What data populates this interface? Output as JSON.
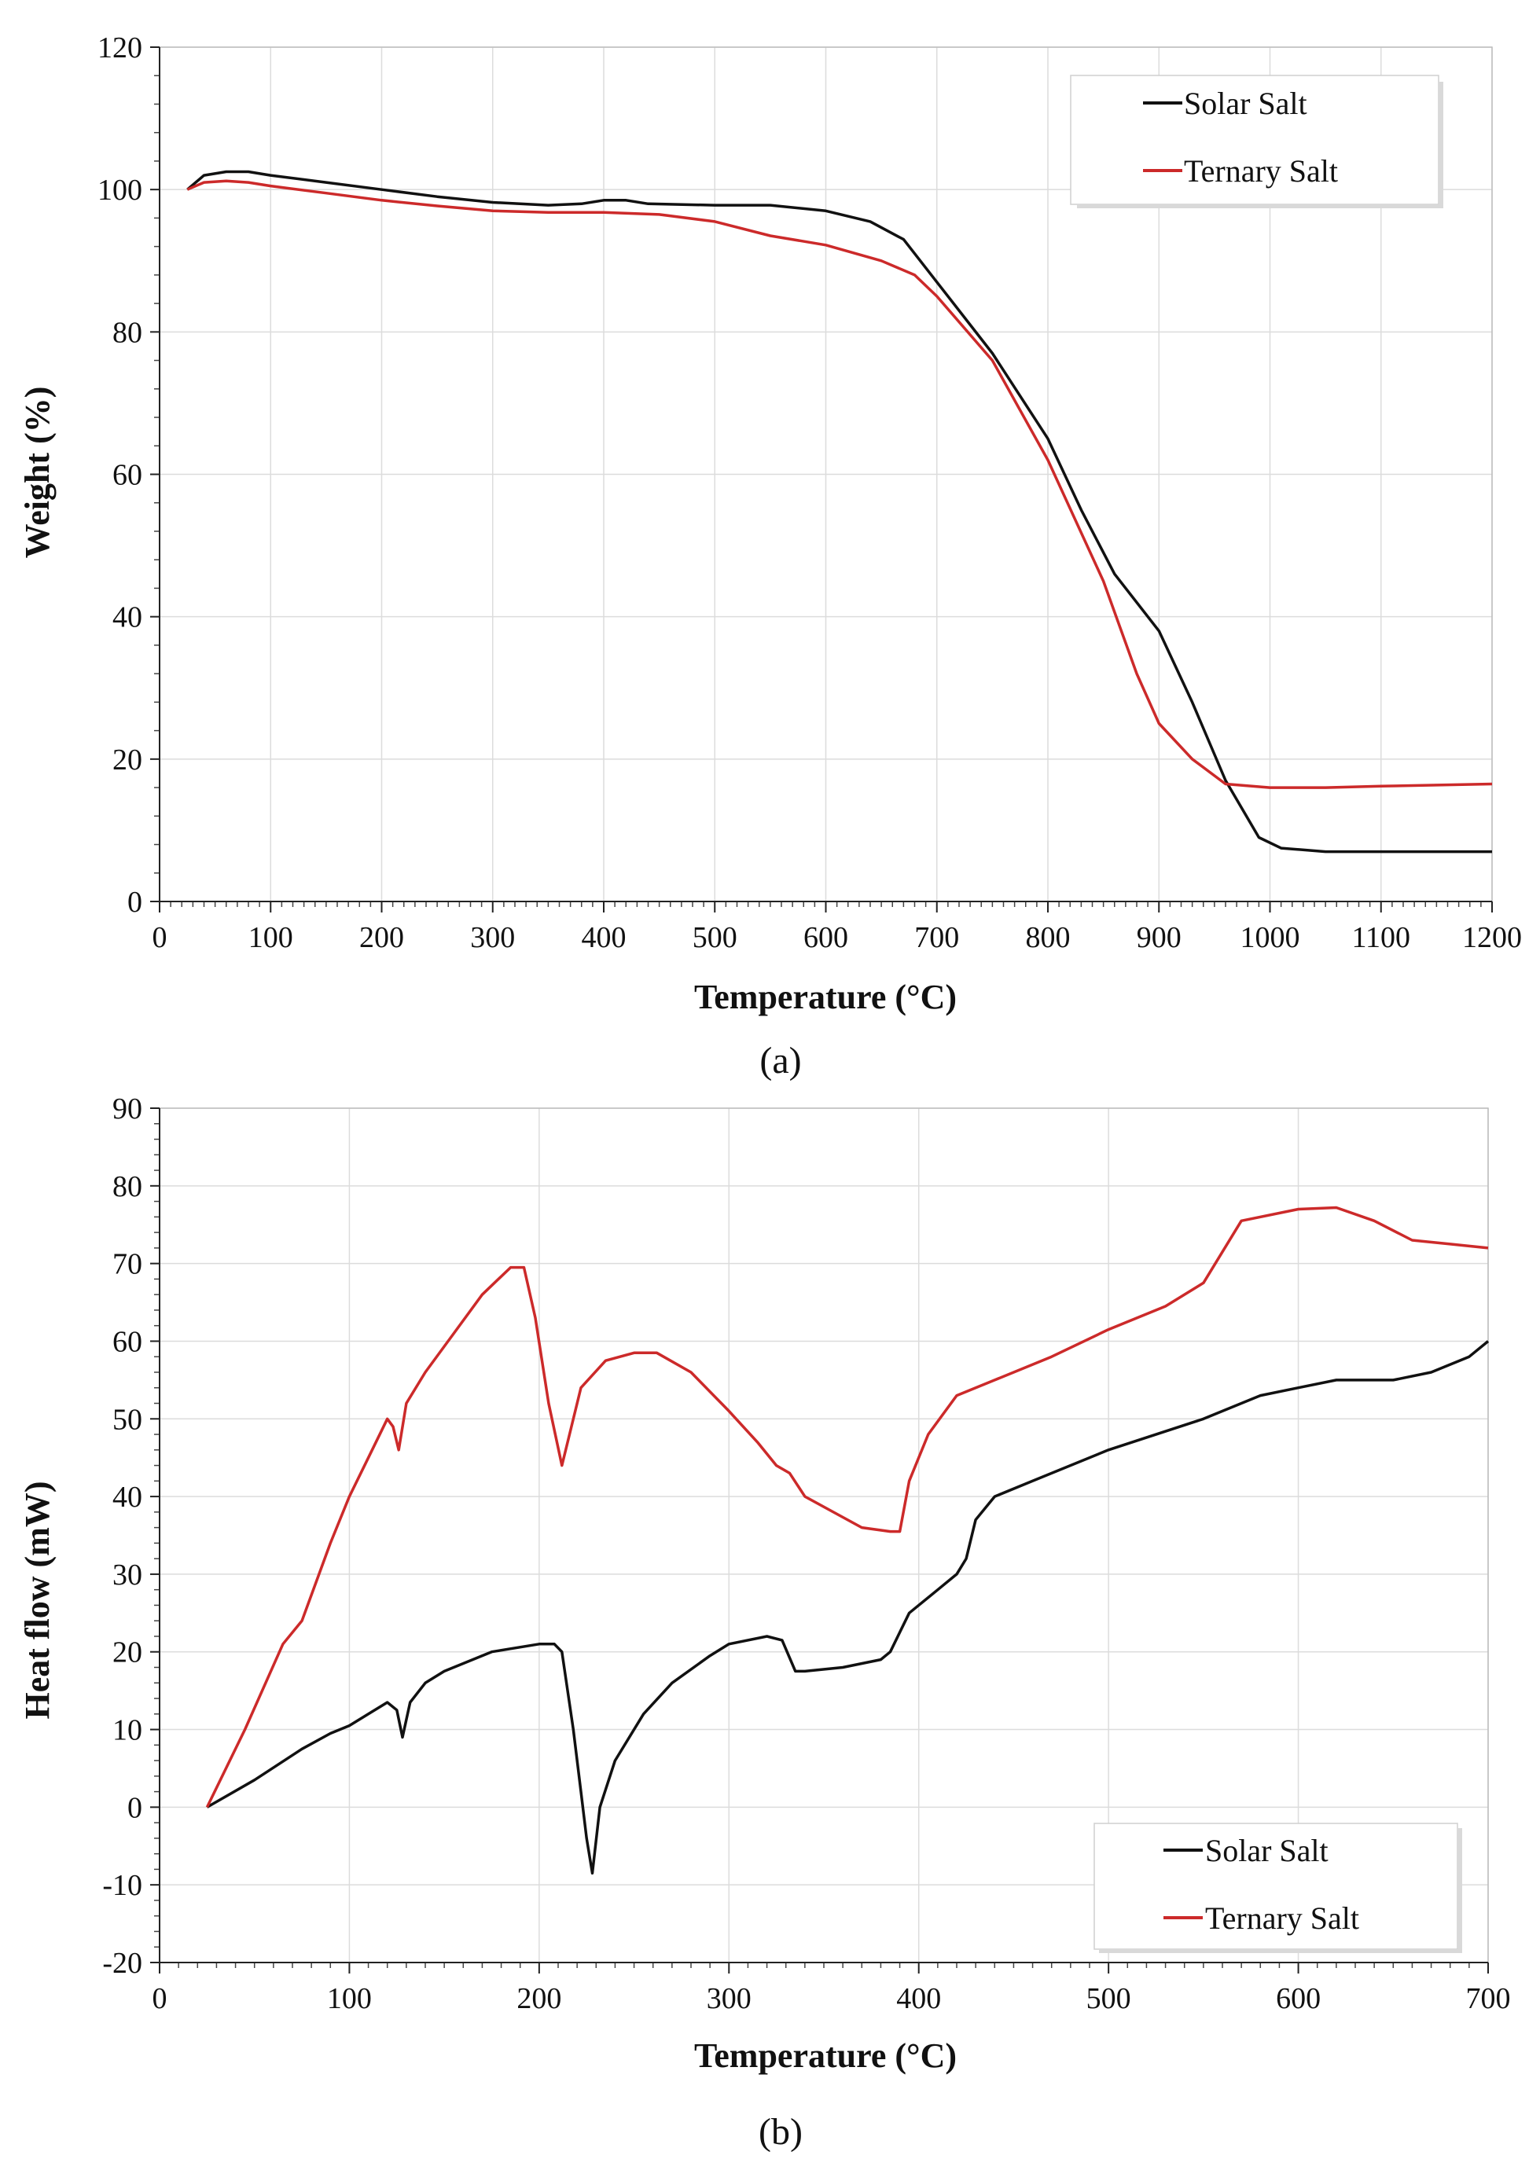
{
  "chart_data": [
    {
      "type": "line",
      "panel_id": "a",
      "caption": "(a)",
      "title": "",
      "xlabel": "Temperature (°C)",
      "ylabel": "Weight   (%)",
      "xlim": [
        0,
        1200
      ],
      "ylim": [
        0,
        120
      ],
      "xticks": [
        0,
        100,
        200,
        300,
        400,
        500,
        600,
        700,
        800,
        900,
        1000,
        1100,
        1200
      ],
      "yticks": [
        0,
        20,
        40,
        60,
        80,
        100,
        120
      ],
      "grid": true,
      "legend_position": "top-right",
      "series": [
        {
          "name": "Solar Salt",
          "color": "#111111",
          "x": [
            25,
            40,
            60,
            80,
            100,
            150,
            200,
            250,
            300,
            350,
            380,
            400,
            420,
            440,
            500,
            550,
            600,
            640,
            670,
            700,
            750,
            800,
            830,
            860,
            900,
            930,
            960,
            990,
            1010,
            1050,
            1100,
            1200
          ],
          "y": [
            100,
            102,
            102.5,
            102.5,
            102,
            101,
            100,
            99,
            98.2,
            97.8,
            98,
            98.5,
            98.5,
            98,
            97.8,
            97.8,
            97,
            95.5,
            93,
            87,
            77,
            65,
            55,
            46,
            38,
            28,
            17,
            9,
            7.5,
            7,
            7,
            7
          ]
        },
        {
          "name": "Ternary Salt",
          "color": "#cc2a2a",
          "x": [
            25,
            40,
            60,
            80,
            100,
            150,
            200,
            250,
            300,
            350,
            380,
            400,
            450,
            500,
            550,
            600,
            650,
            680,
            700,
            750,
            800,
            850,
            880,
            900,
            930,
            960,
            1000,
            1050,
            1100,
            1200
          ],
          "y": [
            100,
            101,
            101.2,
            101,
            100.5,
            99.5,
            98.5,
            97.7,
            97,
            96.8,
            96.8,
            96.8,
            96.5,
            95.5,
            93.5,
            92.2,
            90,
            88,
            85,
            76,
            62,
            45,
            32,
            25,
            20,
            16.5,
            16,
            16,
            16.2,
            16.5
          ]
        }
      ]
    },
    {
      "type": "line",
      "panel_id": "b",
      "caption": "(b)",
      "title": "",
      "xlabel": "Temperature (°C)",
      "ylabel": "Heat flow (mW)",
      "xlim": [
        0,
        700
      ],
      "ylim": [
        -20,
        90
      ],
      "xticks": [
        0,
        100,
        200,
        300,
        400,
        500,
        600,
        700
      ],
      "yticks": [
        -20,
        -10,
        0,
        10,
        20,
        30,
        40,
        50,
        60,
        70,
        80,
        90
      ],
      "grid": true,
      "legend_position": "bottom-right",
      "series": [
        {
          "name": "Solar Salt",
          "color": "#111111",
          "x": [
            25,
            50,
            75,
            90,
            100,
            110,
            120,
            125,
            128,
            132,
            140,
            150,
            175,
            200,
            208,
            212,
            218,
            222,
            225,
            228,
            232,
            240,
            255,
            270,
            290,
            300,
            320,
            328,
            335,
            340,
            360,
            380,
            385,
            395,
            410,
            420,
            425,
            430,
            440,
            460,
            500,
            550,
            580,
            600,
            620,
            650,
            670,
            690,
            700
          ],
          "y": [
            0,
            3.5,
            7.5,
            9.5,
            10.5,
            12,
            13.5,
            12.5,
            9,
            13.5,
            16,
            17.5,
            20,
            21,
            21,
            20,
            10,
            2,
            -4,
            -8.5,
            0,
            6,
            12,
            16,
            19.5,
            21,
            22,
            21.5,
            17.5,
            17.5,
            18,
            19,
            20,
            25,
            28,
            30,
            32,
            37,
            40,
            42,
            46,
            50,
            53,
            54,
            55,
            55,
            56,
            58,
            60
          ]
        },
        {
          "name": "Ternary Salt",
          "color": "#cc2a2a",
          "x": [
            25,
            45,
            65,
            75,
            90,
            100,
            110,
            120,
            123,
            126,
            130,
            140,
            155,
            170,
            185,
            192,
            198,
            205,
            212,
            216,
            222,
            235,
            250,
            262,
            280,
            300,
            315,
            325,
            332,
            340,
            355,
            370,
            385,
            390,
            395,
            405,
            420,
            440,
            470,
            500,
            530,
            550,
            570,
            600,
            620,
            640,
            660,
            680,
            700
          ],
          "y": [
            0,
            10,
            21,
            24,
            34,
            40,
            45,
            50,
            49,
            46,
            52,
            56,
            61,
            66,
            69.5,
            69.5,
            63,
            52,
            44,
            48,
            54,
            57.5,
            58.5,
            58.5,
            56,
            51,
            47,
            44,
            43,
            40,
            38,
            36,
            35.5,
            35.5,
            42,
            48,
            53,
            55,
            58,
            61.5,
            64.5,
            67.5,
            75.5,
            77,
            77.2,
            75.5,
            73,
            72.5,
            72
          ]
        }
      ]
    }
  ]
}
